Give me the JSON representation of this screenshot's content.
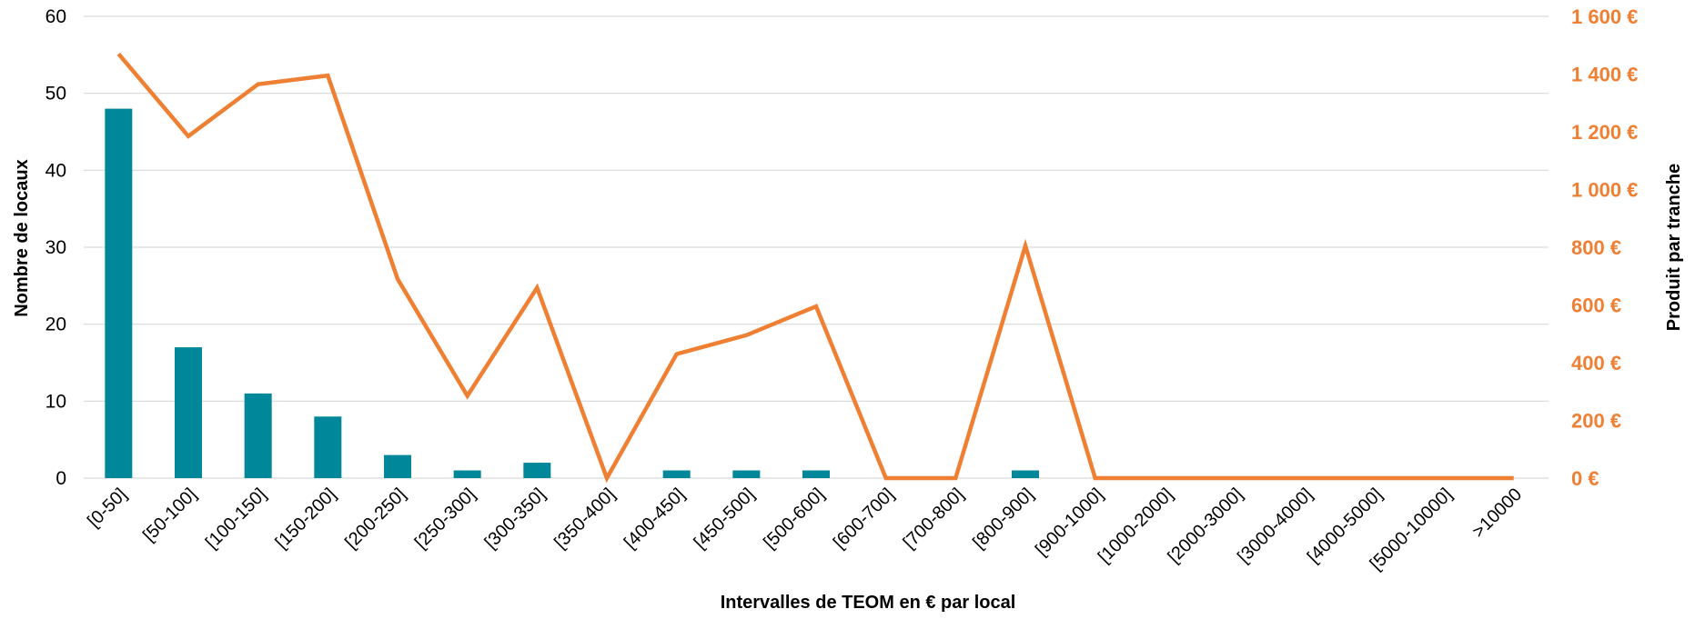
{
  "chart_data": {
    "type": "bar",
    "title": "",
    "xlabel": "Intervalles de TEOM en € par local",
    "categories": [
      "[0-50]",
      "[50-100]",
      "[100-150]",
      "[150-200]",
      "[200-250]",
      "[250-300]",
      "[300-350]",
      "[350-400]",
      "[400-450]",
      "[450-500]",
      "[500-600]",
      "[600-700]",
      "[700-800]",
      "[800-900]",
      "[900-1000]",
      "[1000-2000]",
      "[2000-3000]",
      "[3000-4000]",
      "[4000-5000]",
      "[5000-10000]",
      ">10000"
    ],
    "y_left": {
      "label": "Nombre de locaux",
      "lim": [
        0,
        60
      ],
      "ticks": [
        0,
        10,
        20,
        30,
        40,
        50,
        60
      ],
      "tick_labels": [
        "0",
        "10",
        "20",
        "30",
        "40",
        "50",
        "60"
      ]
    },
    "y_right": {
      "label": "Produit par tranche",
      "lim": [
        0,
        1600
      ],
      "ticks": [
        0,
        200,
        400,
        600,
        800,
        1000,
        1200,
        1400,
        1600
      ],
      "tick_labels": [
        "0 €",
        "200 €",
        "400 €",
        "600 €",
        "800 €",
        "1 000 €",
        "1 200 €",
        "1 400 €",
        "1 600 €"
      ]
    },
    "series": [
      {
        "type": "bar",
        "axis": "left",
        "color": "#00889a",
        "values": [
          48,
          17,
          11,
          8,
          3,
          1,
          2,
          0,
          1,
          1,
          1,
          0,
          0,
          1,
          0,
          0,
          0,
          0,
          0,
          0,
          0
        ]
      },
      {
        "type": "line",
        "axis": "right",
        "color": "#ee7f33",
        "values": [
          1470,
          1185,
          1365,
          1395,
          690,
          285,
          660,
          0,
          430,
          495,
          595,
          0,
          0,
          805,
          0,
          0,
          0,
          0,
          0,
          0,
          0
        ]
      }
    ],
    "grid": true
  }
}
